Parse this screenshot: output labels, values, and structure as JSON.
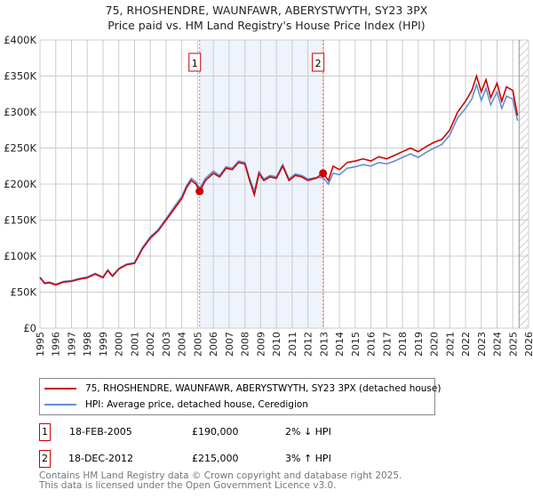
{
  "title": "75, RHOSHENDRE, WAUNFAWR, ABERYSTWYTH, SY23 3PX",
  "subtitle": "Price paid vs. HM Land Registry's House Price Index (HPI)",
  "chart_data": {
    "type": "line",
    "xlim": [
      1995,
      2026
    ],
    "ylim": [
      0,
      400000
    ],
    "x_ticks": [
      "1995",
      "1996",
      "1997",
      "1998",
      "1999",
      "2000",
      "2001",
      "2002",
      "2003",
      "2004",
      "2005",
      "2006",
      "2007",
      "2008",
      "2009",
      "2010",
      "2011",
      "2012",
      "2013",
      "2014",
      "2015",
      "2016",
      "2017",
      "2018",
      "2019",
      "2020",
      "2021",
      "2022",
      "2023",
      "2024",
      "2025",
      "2026"
    ],
    "y_ticks": [
      {
        "v": 0,
        "label": "£0"
      },
      {
        "v": 50000,
        "label": "£50K"
      },
      {
        "v": 100000,
        "label": "£100K"
      },
      {
        "v": 150000,
        "label": "£150K"
      },
      {
        "v": 200000,
        "label": "£200K"
      },
      {
        "v": 250000,
        "label": "£250K"
      },
      {
        "v": 300000,
        "label": "£300K"
      },
      {
        "v": 350000,
        "label": "£350K"
      },
      {
        "v": 400000,
        "label": "£400K"
      }
    ],
    "shaded_region": [
      2005.13,
      2012.96
    ],
    "forecast_hatch_from": 2025.4,
    "colors": {
      "price": "#cc0000",
      "hpi": "#6090d0",
      "shade": "#eef3fc"
    },
    "series": [
      {
        "name": "75, RHOSHENDRE, WAUNFAWR, ABERYSTWYTH, SY23 3PX (detached house)",
        "color": "#cc0000",
        "x": [
          1995,
          1995.3,
          1995.6,
          1996,
          1996.5,
          1997,
          1997.5,
          1998,
          1998.5,
          1999,
          1999.3,
          1999.6,
          2000,
          2000.5,
          2001,
          2001.5,
          2002,
          2002.5,
          2003,
          2003.5,
          2004,
          2004.3,
          2004.6,
          2004.9,
          2005.13,
          2005.5,
          2006,
          2006.4,
          2006.8,
          2007.2,
          2007.6,
          2008,
          2008.3,
          2008.6,
          2008.9,
          2009.2,
          2009.6,
          2010,
          2010.4,
          2010.8,
          2011.2,
          2011.6,
          2012,
          2012.5,
          2012.96,
          2013.3,
          2013.6,
          2014,
          2014.5,
          2015,
          2015.5,
          2016,
          2016.5,
          2017,
          2017.5,
          2018,
          2018.5,
          2019,
          2019.5,
          2020,
          2020.5,
          2021,
          2021.5,
          2022,
          2022.4,
          2022.7,
          2023,
          2023.3,
          2023.6,
          2024,
          2024.3,
          2024.6,
          2025,
          2025.3
        ],
        "y": [
          70000,
          62000,
          63000,
          60000,
          64000,
          65000,
          68000,
          70000,
          75000,
          70000,
          80000,
          72000,
          82000,
          88000,
          90000,
          110000,
          125000,
          135000,
          150000,
          165000,
          180000,
          195000,
          205000,
          200000,
          190000,
          205000,
          215000,
          210000,
          222000,
          220000,
          230000,
          228000,
          205000,
          185000,
          215000,
          205000,
          210000,
          208000,
          225000,
          205000,
          212000,
          210000,
          205000,
          208000,
          215000,
          205000,
          225000,
          220000,
          230000,
          232000,
          235000,
          232000,
          238000,
          235000,
          240000,
          245000,
          250000,
          245000,
          252000,
          258000,
          262000,
          275000,
          300000,
          315000,
          330000,
          350000,
          328000,
          345000,
          320000,
          340000,
          315000,
          335000,
          330000,
          295000
        ]
      },
      {
        "name": "HPI: Average price, detached house, Ceredigion",
        "color": "#6090d0",
        "x": [
          1995,
          1995.3,
          1995.6,
          1996,
          1996.5,
          1997,
          1997.5,
          1998,
          1998.5,
          1999,
          1999.3,
          1999.6,
          2000,
          2000.5,
          2001,
          2001.5,
          2002,
          2002.5,
          2003,
          2003.5,
          2004,
          2004.3,
          2004.6,
          2004.9,
          2005.13,
          2005.5,
          2006,
          2006.4,
          2006.8,
          2007.2,
          2007.6,
          2008,
          2008.3,
          2008.6,
          2008.9,
          2009.2,
          2009.6,
          2010,
          2010.4,
          2010.8,
          2011.2,
          2011.6,
          2012,
          2012.5,
          2012.96,
          2013.3,
          2013.6,
          2014,
          2014.5,
          2015,
          2015.5,
          2016,
          2016.5,
          2017,
          2017.5,
          2018,
          2018.5,
          2019,
          2019.5,
          2020,
          2020.5,
          2021,
          2021.5,
          2022,
          2022.4,
          2022.7,
          2023,
          2023.3,
          2023.6,
          2024,
          2024.3,
          2024.6,
          2025,
          2025.3
        ],
        "y": [
          71000,
          63000,
          64000,
          61000,
          65000,
          66000,
          69000,
          71000,
          76000,
          71000,
          81000,
          73000,
          83000,
          89000,
          91000,
          112000,
          127000,
          137000,
          152000,
          168000,
          183000,
          198000,
          208000,
          203000,
          194000,
          208000,
          218000,
          212000,
          224000,
          222000,
          232000,
          230000,
          208000,
          190000,
          217000,
          207000,
          212000,
          210000,
          227000,
          207000,
          214000,
          212000,
          207000,
          209000,
          209000,
          200000,
          215000,
          213000,
          222000,
          224000,
          227000,
          225000,
          230000,
          228000,
          232000,
          237000,
          242000,
          237000,
          244000,
          250000,
          255000,
          268000,
          292000,
          305000,
          318000,
          338000,
          316000,
          333000,
          310000,
          328000,
          305000,
          322000,
          318000,
          288000
        ]
      }
    ],
    "sales": [
      {
        "id": "1",
        "x": 2005.13,
        "y": 190000
      },
      {
        "id": "2",
        "x": 2012.96,
        "y": 215000
      }
    ]
  },
  "legend": {
    "price_label": "75, RHOSHENDRE, WAUNFAWR, ABERYSTWYTH, SY23 3PX (detached house)",
    "hpi_label": "HPI: Average price, detached house, Ceredigion"
  },
  "transactions": [
    {
      "id": "1",
      "date": "18-FEB-2005",
      "price": "£190,000",
      "hpi": "2% ↓ HPI"
    },
    {
      "id": "2",
      "date": "18-DEC-2012",
      "price": "£215,000",
      "hpi": "3% ↑ HPI"
    }
  ],
  "footer": {
    "line1": "Contains HM Land Registry data © Crown copyright and database right 2025.",
    "line2": "This data is licensed under the Open Government Licence v3.0."
  }
}
